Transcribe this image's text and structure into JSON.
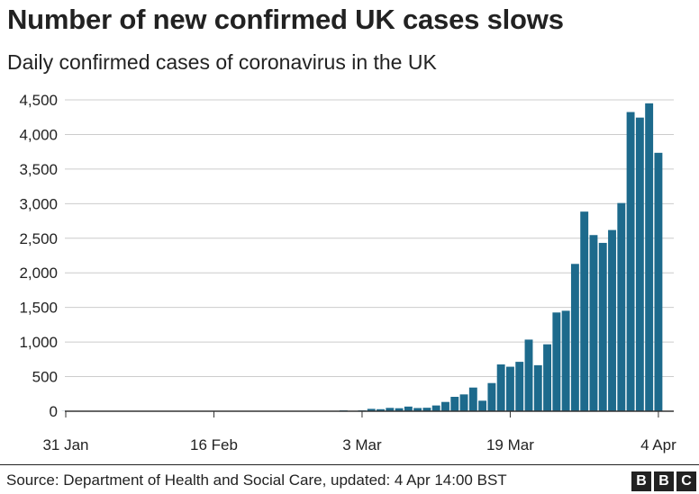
{
  "header": {
    "title": "Number of new confirmed UK cases slows",
    "subtitle": "Daily confirmed cases of coronavirus in the UK"
  },
  "footer": {
    "source": "Source: Department of Health and Social Care, updated: 4 Apr 14:00 BST",
    "logo_letters": [
      "B",
      "B",
      "C"
    ]
  },
  "colors": {
    "bar": "#1d6a8c",
    "gridline": "#cccccc",
    "baseline": "#333333",
    "text": "#222222"
  },
  "chart_data": {
    "type": "bar",
    "title": "Number of new confirmed UK cases slows",
    "subtitle": "Daily confirmed cases of coronavirus in the UK",
    "xlabel": "",
    "ylabel": "",
    "ylim": [
      0,
      4500
    ],
    "yticks": [
      0,
      500,
      1000,
      1500,
      2000,
      2500,
      3000,
      3500,
      4000,
      4500
    ],
    "ytick_labels": [
      "0",
      "500",
      "1,000",
      "1,500",
      "2,000",
      "2,500",
      "3,000",
      "3,500",
      "4,000",
      "4,500"
    ],
    "xticks": [
      {
        "date": "2020-01-31",
        "label": "31 Jan"
      },
      {
        "date": "2020-02-16",
        "label": "16 Feb"
      },
      {
        "date": "2020-03-03",
        "label": "3 Mar"
      },
      {
        "date": "2020-03-19",
        "label": "19 Mar"
      },
      {
        "date": "2020-04-04",
        "label": "4 Apr"
      }
    ],
    "grid": true,
    "legend": "none",
    "series": [
      {
        "x": [
          "2020-01-31",
          "2020-02-01",
          "2020-02-02",
          "2020-02-03",
          "2020-02-04",
          "2020-02-05",
          "2020-02-06",
          "2020-02-07",
          "2020-02-08",
          "2020-02-09",
          "2020-02-10",
          "2020-02-11",
          "2020-02-12",
          "2020-02-13",
          "2020-02-14",
          "2020-02-15",
          "2020-02-16",
          "2020-02-17",
          "2020-02-18",
          "2020-02-19",
          "2020-02-20",
          "2020-02-21",
          "2020-02-22",
          "2020-02-23",
          "2020-02-24",
          "2020-02-25",
          "2020-02-26",
          "2020-02-27",
          "2020-02-28",
          "2020-02-29",
          "2020-03-01",
          "2020-03-02",
          "2020-03-03",
          "2020-03-04",
          "2020-03-05",
          "2020-03-06",
          "2020-03-07",
          "2020-03-08",
          "2020-03-09",
          "2020-03-10",
          "2020-03-11",
          "2020-03-12",
          "2020-03-13",
          "2020-03-14",
          "2020-03-15",
          "2020-03-16",
          "2020-03-17",
          "2020-03-18",
          "2020-03-19",
          "2020-03-20",
          "2020-03-21",
          "2020-03-22",
          "2020-03-23",
          "2020-03-24",
          "2020-03-25",
          "2020-03-26",
          "2020-03-27",
          "2020-03-28",
          "2020-03-29",
          "2020-03-30",
          "2020-03-31",
          "2020-04-01",
          "2020-04-02",
          "2020-04-03",
          "2020-04-04"
        ],
        "values": [
          2,
          0,
          0,
          0,
          0,
          0,
          1,
          1,
          0,
          0,
          4,
          0,
          1,
          0,
          0,
          0,
          0,
          0,
          0,
          0,
          0,
          0,
          0,
          0,
          4,
          0,
          4,
          3,
          5,
          4,
          12,
          4,
          12,
          34,
          29,
          48,
          43,
          67,
          46,
          50,
          83,
          134,
          208,
          243,
          342,
          152,
          407,
          676,
          643,
          714,
          1035,
          665,
          967,
          1427,
          1452,
          2129,
          2885,
          2546,
          2433,
          2619,
          3009,
          4324,
          4244,
          4450,
          3735
        ]
      }
    ]
  }
}
